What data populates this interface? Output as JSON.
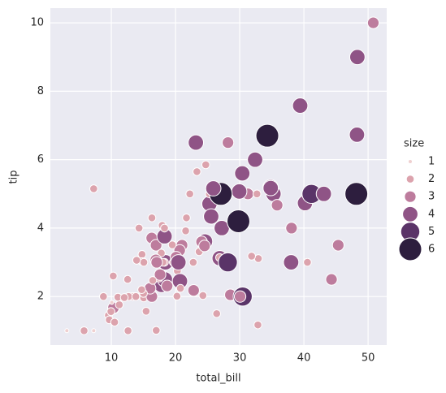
{
  "chart_data": {
    "type": "scatter",
    "x_label": "total_bill",
    "y_label": "tip",
    "xlim": [
      0.5,
      52.9
    ],
    "ylim": [
      0.58,
      10.43
    ],
    "xticks": [
      10,
      20,
      30,
      40,
      50
    ],
    "yticks": [
      2,
      4,
      6,
      8,
      10
    ],
    "grid": true,
    "legend": {
      "title": "size",
      "values": [
        1,
        2,
        3,
        4,
        5,
        6
      ],
      "colors": [
        "#efd0d0",
        "#dca3ad",
        "#bd7c9d",
        "#8f5486",
        "#5a3468",
        "#2d1e3e"
      ]
    },
    "x": [
      16.99,
      10.34,
      21.01,
      23.68,
      24.59,
      25.29,
      8.77,
      26.88,
      15.04,
      14.78,
      10.27,
      35.26,
      15.42,
      18.43,
      14.83,
      21.58,
      10.33,
      16.29,
      16.97,
      20.65,
      17.92,
      20.29,
      15.77,
      39.42,
      19.82,
      17.81,
      13.37,
      12.69,
      21.7,
      19.65,
      9.55,
      18.35,
      15.06,
      20.69,
      17.78,
      24.06,
      16.31,
      16.93,
      18.69,
      31.27,
      16.04,
      17.46,
      13.94,
      9.68,
      30.4,
      18.29,
      22.23,
      32.4,
      28.55,
      18.04,
      12.54,
      10.29,
      34.81,
      9.94,
      25.56,
      19.49,
      38.01,
      26.41,
      11.24,
      48.27,
      13.81,
      11.02,
      18.29,
      17.59,
      20.08,
      16.45,
      3.07,
      20.23,
      15.01,
      12.02,
      17.07,
      26.86,
      25.28,
      14.73,
      10.51,
      27.2,
      22.76,
      10.07,
      32.68,
      34.83,
      18.28,
      24.71,
      28.97,
      5.75,
      16.32,
      40.17,
      44.3,
      14.31,
      7.25,
      38.07,
      29.93,
      50.81,
      48.33,
      7.25,
      48.17,
      41.19,
      29.8,
      34.3,
      27.05,
      43.11,
      45.35,
      23.33,
      28.17,
      23.17,
      32.9,
      32.83,
      35.83,
      30.46,
      40.55,
      20.45,
      22.82,
      24.27,
      28.15,
      31.85,
      20.76,
      30.06,
      25.89,
      24.52,
      12.6
    ],
    "y": [
      1.01,
      1.66,
      3.5,
      3.31,
      3.61,
      4.71,
      2,
      3.12,
      1.96,
      3.23,
      1.71,
      5,
      1.57,
      3,
      3.02,
      3.92,
      1.67,
      3.71,
      3.5,
      3.35,
      4.08,
      2.75,
      2.23,
      7.58,
      3.18,
      2.34,
      2,
      2,
      4.3,
      3,
      1.45,
      2.5,
      3,
      2.45,
      3.27,
      3.6,
      2,
      3.07,
      2.31,
      5,
      2.24,
      2.54,
      3.06,
      1.32,
      5.6,
      3,
      5,
      6,
      2.05,
      3,
      2.5,
      2.6,
      5.2,
      1.56,
      4.34,
      3.51,
      3,
      1.5,
      1.76,
      6.73,
      2,
      1.98,
      3.76,
      2.64,
      3.15,
      2.47,
      1,
      2.01,
      2.09,
      1.97,
      3,
      3.14,
      5,
      2.2,
      1.25,
      4,
      3,
      1.83,
      5,
      5.17,
      4,
      5.85,
      3,
      1,
      4.3,
      4.73,
      2.5,
      4,
      1,
      4,
      5.07,
      10,
      9,
      5.15,
      5,
      5,
      4.2,
      6.7,
      5,
      5,
      3.5,
      5.65,
      6.5,
      6.5,
      3.11,
      1.17,
      4.67,
      2,
      3,
      3,
      2.18,
      2.03,
      3,
      3.18,
      2.24,
      2,
      5.16,
      3.48,
      1
    ],
    "size": [
      2,
      3,
      3,
      2,
      4,
      4,
      2,
      4,
      2,
      2,
      2,
      4,
      2,
      4,
      2,
      2,
      3,
      3,
      3,
      3,
      2,
      2,
      2,
      4,
      2,
      4,
      2,
      2,
      2,
      2,
      2,
      4,
      2,
      4,
      2,
      3,
      3,
      3,
      3,
      3,
      3,
      2,
      2,
      2,
      4,
      2,
      2,
      4,
      3,
      2,
      2,
      2,
      4,
      2,
      4,
      2,
      4,
      2,
      2,
      4,
      2,
      2,
      4,
      3,
      3,
      2,
      1,
      2,
      2,
      2,
      3,
      2,
      2,
      2,
      2,
      4,
      2,
      1,
      2,
      4,
      2,
      2,
      2,
      2,
      2,
      4,
      3,
      2,
      1,
      3,
      4,
      3,
      4,
      2,
      6,
      5,
      6,
      6,
      6,
      4,
      3,
      2,
      3,
      4,
      2,
      2,
      3,
      5,
      2,
      4,
      3,
      2,
      5,
      2,
      2,
      3,
      4,
      3,
      2
    ]
  }
}
